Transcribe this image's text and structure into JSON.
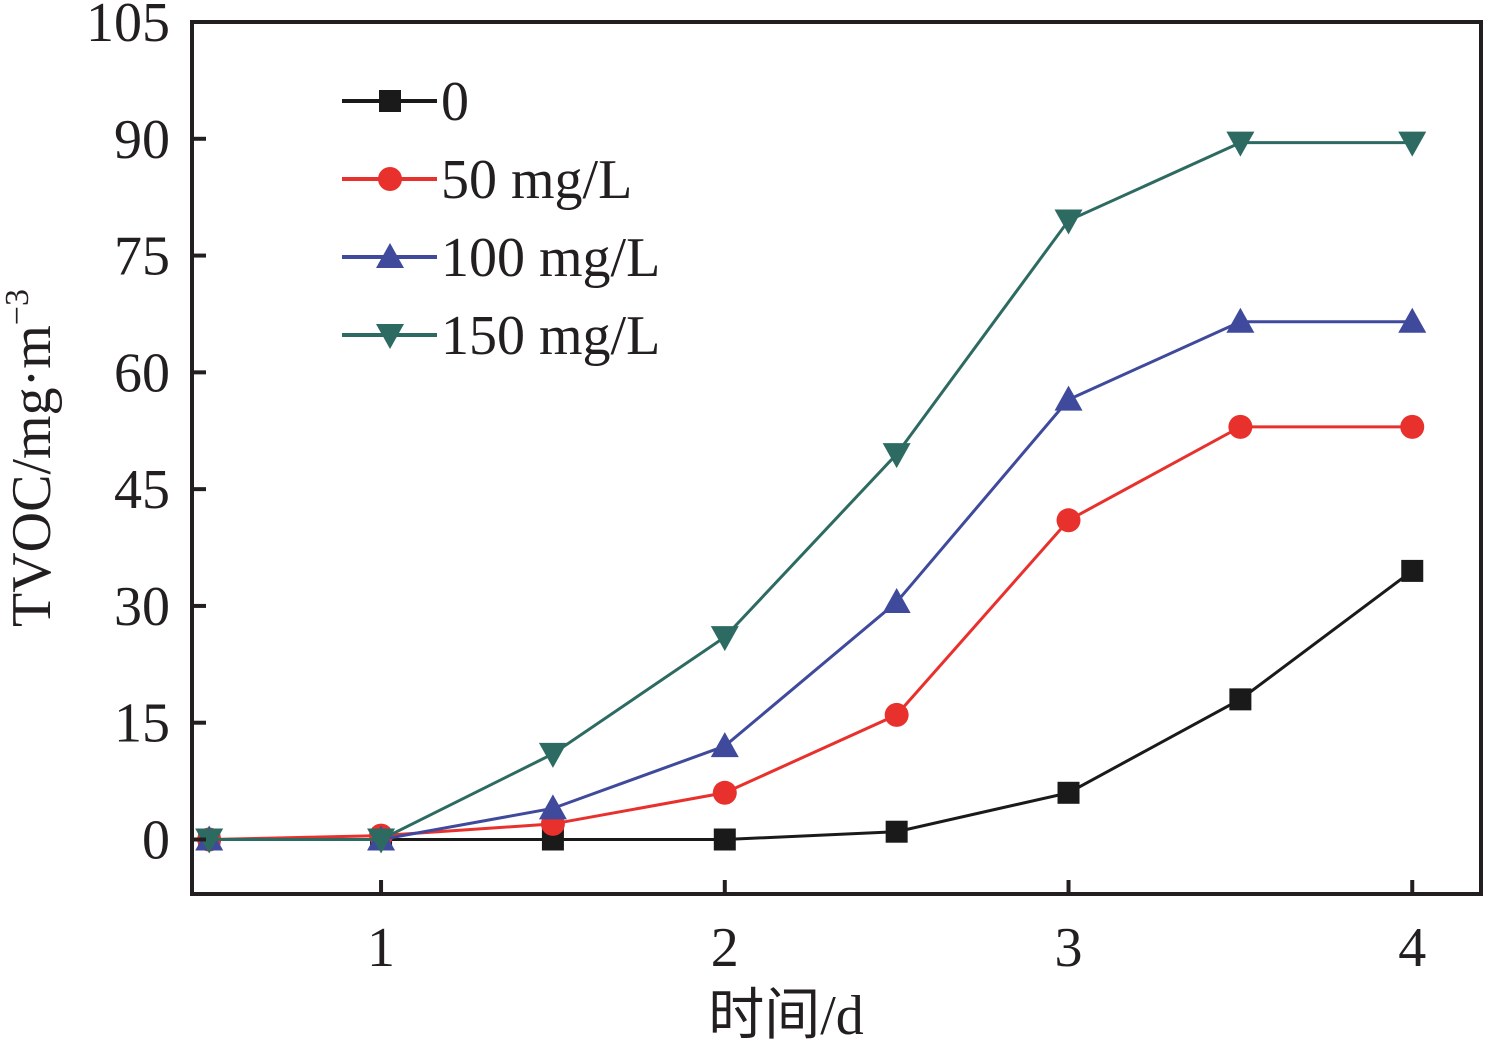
{
  "chart_data": {
    "type": "line",
    "title": "",
    "xlabel": "时间/d",
    "ylabel": "TVOC/mg·m",
    "ylabel_superscript": "−3",
    "xlim": [
      0.45,
      4.2
    ],
    "ylim": [
      -7,
      105
    ],
    "x_ticks": [
      1,
      2,
      3,
      4
    ],
    "x_tick_labels": [
      "1",
      "2",
      "3",
      "4"
    ],
    "y_ticks": [
      0,
      15,
      30,
      45,
      60,
      75,
      90,
      105
    ],
    "y_tick_labels": [
      "0",
      "15",
      "30",
      "45",
      "60",
      "75",
      "90",
      "105"
    ],
    "grid": false,
    "legend_position": "top-left",
    "x": [
      0.5,
      1,
      1.5,
      2,
      2.5,
      3,
      3.5,
      4
    ],
    "series": [
      {
        "name": "0",
        "color": "#1a1a1a",
        "marker": "square",
        "values": [
          0,
          0,
          0,
          0,
          1,
          6,
          18,
          34.5
        ]
      },
      {
        "name": "50 mg/L",
        "color": "#e8312c",
        "marker": "circle",
        "values": [
          0,
          0.5,
          2,
          6,
          16,
          41,
          53,
          53
        ]
      },
      {
        "name": "100 mg/L",
        "color": "#3f4a9c",
        "marker": "triangle-up",
        "values": [
          0,
          0,
          4,
          12,
          30.5,
          56.5,
          66.5,
          66.5
        ]
      },
      {
        "name": "150 mg/L",
        "color": "#2d6b62",
        "marker": "triangle-down",
        "values": [
          0,
          0,
          11,
          26,
          49.5,
          79.5,
          89.5,
          89.5
        ]
      }
    ]
  }
}
